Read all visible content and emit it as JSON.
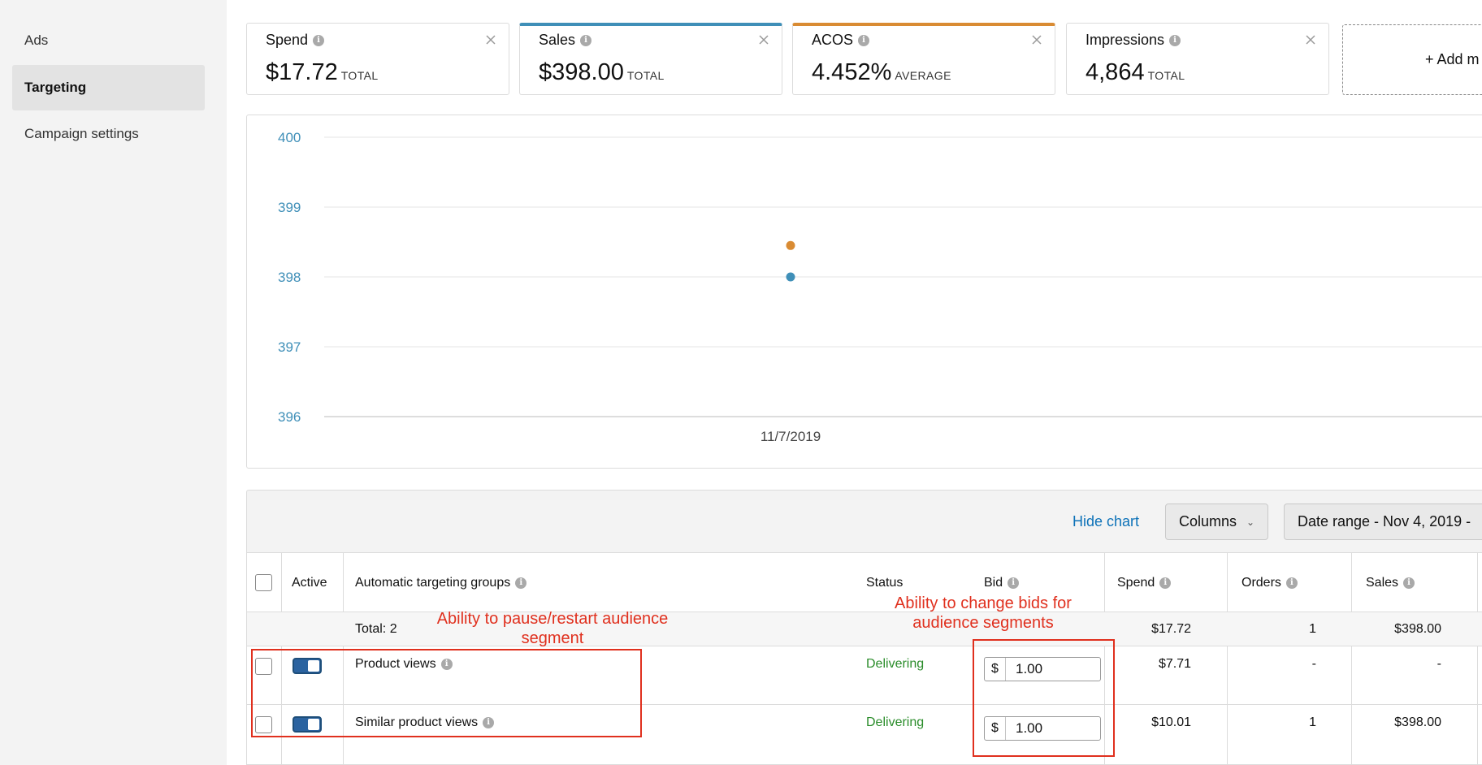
{
  "sidebar": {
    "items": [
      {
        "label": "Ads",
        "active": false
      },
      {
        "label": "Targeting",
        "active": true
      },
      {
        "label": "Campaign settings",
        "active": false
      }
    ]
  },
  "metrics": [
    {
      "title": "Spend",
      "value": "$17.72",
      "unit": "TOTAL",
      "accent": ""
    },
    {
      "title": "Sales",
      "value": "$398.00",
      "unit": "TOTAL",
      "accent": "#3f8fb8"
    },
    {
      "title": "ACOS",
      "value": "4.452%",
      "unit": "AVERAGE",
      "accent": "#d98b33"
    },
    {
      "title": "Impressions",
      "value": "4,864",
      "unit": "TOTAL",
      "accent": ""
    }
  ],
  "add_metric_label": "+ Add m",
  "chart_data": {
    "type": "scatter",
    "x": [
      "11/7/2019"
    ],
    "ylim": [
      396,
      400
    ],
    "yticks": [
      400,
      399,
      398,
      397,
      396
    ],
    "tick_color": "#3f8fb8",
    "grid": true,
    "series": [
      {
        "values": [
          398.45
        ],
        "color": "#d98b33"
      },
      {
        "values": [
          398.0
        ],
        "color": "#3f8fb8"
      }
    ]
  },
  "toolbar": {
    "hide_chart": "Hide chart",
    "columns": "Columns",
    "date_range": "Date range - Nov 4, 2019 -"
  },
  "table": {
    "headers": {
      "active": "Active",
      "group": "Automatic targeting groups",
      "status": "Status",
      "bid": "Bid",
      "spend": "Spend",
      "orders": "Orders",
      "sales": "Sales"
    },
    "total": {
      "label": "Total: 2",
      "spend": "$17.72",
      "orders": "1",
      "sales": "$398.00"
    },
    "rows": [
      {
        "name": "Product views",
        "status": "Delivering",
        "currency": "$",
        "bid": "1.00",
        "spend": "$7.71",
        "orders": "-",
        "sales": "-"
      },
      {
        "name": "Similar product views",
        "status": "Delivering",
        "currency": "$",
        "bid": "1.00",
        "spend": "$10.01",
        "orders": "1",
        "sales": "$398.00"
      }
    ]
  },
  "annotations": {
    "pause": "Ability to pause/restart audience segment",
    "bids": "Ability to change bids for audience segments"
  }
}
